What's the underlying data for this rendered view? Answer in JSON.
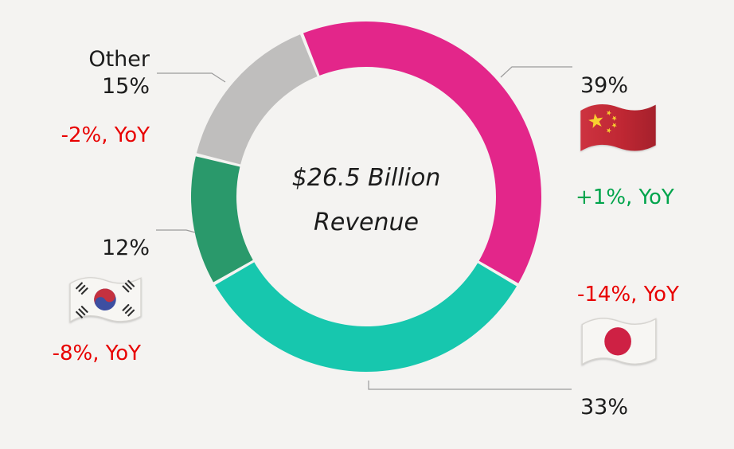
{
  "chart_data": {
    "type": "pie",
    "subtype": "donut",
    "title": "$26.5 Billion Revenue",
    "center_label": {
      "line1": "$26.5 Billion",
      "line2": "Revenue"
    },
    "start_angle_deg": -21.6,
    "legend_position": "callouts-around-chart",
    "segments": [
      {
        "name": "China",
        "pct": 39,
        "pct_label": "39%",
        "yoy_label": "+1%, YoY",
        "yoy_trend": "positive",
        "color": "#e3268a"
      },
      {
        "name": "Japan",
        "pct": 33,
        "pct_label": "33%",
        "yoy_label": "-14%, YoY",
        "yoy_trend": "negative",
        "color": "#17c7ae"
      },
      {
        "name": "South Korea",
        "pct": 12,
        "pct_label": "12%",
        "yoy_label": "-8%, YoY",
        "yoy_trend": "negative",
        "color": "#2a996b"
      },
      {
        "name": "Other",
        "pct": 15,
        "pct_label": "15%",
        "yoy_label": "-2%, YoY",
        "yoy_trend": "negative",
        "color": "#bfbebd"
      }
    ]
  },
  "callouts": {
    "china": {
      "pct": "39%",
      "yoy": "+1%, YoY",
      "flag": "china-flag"
    },
    "japan": {
      "pct": "33%",
      "yoy": "-14%, YoY",
      "flag": "japan-flag"
    },
    "south_korea": {
      "pct": "12%",
      "yoy": "-8%, YoY",
      "flag": "south-korea-flag"
    },
    "other": {
      "name": "Other",
      "pct": "15%",
      "yoy": "-2%, YoY"
    }
  },
  "colors": {
    "background": "#f4f3f1",
    "text": "#1c1c1c",
    "positive": "#00a44c",
    "negative": "#e80000",
    "leader_line": "#9b9b9b"
  }
}
